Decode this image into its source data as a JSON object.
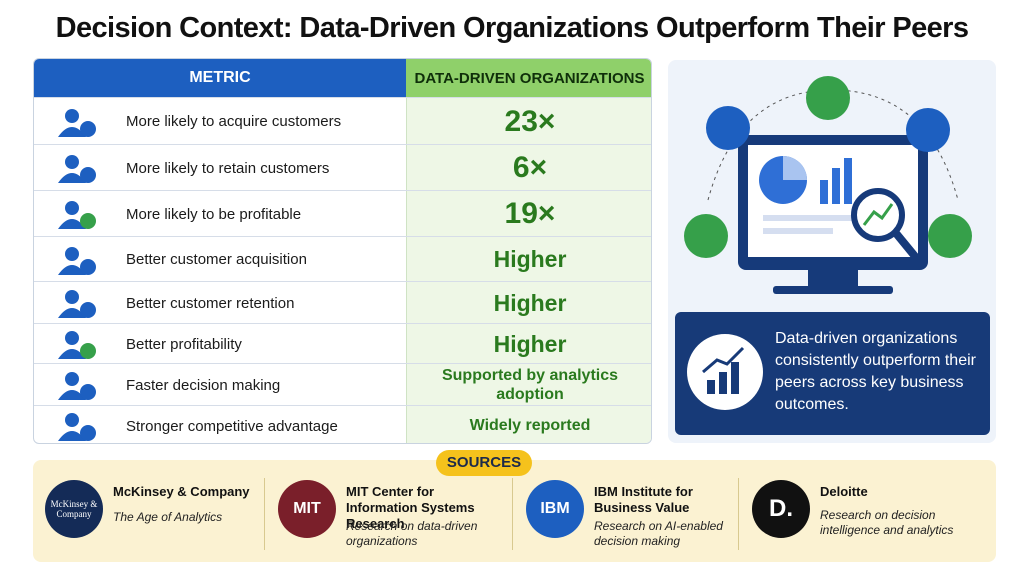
{
  "header": {
    "title": "Decision Context: Data-Driven Organizations Outperform Their Peers"
  },
  "table": {
    "columns": [
      "METRIC",
      "DATA-DRIVEN ORGANIZATIONS"
    ],
    "rows": [
      [
        "More likely to acquire customers",
        "23×"
      ],
      [
        "More likely to retain customers",
        "6×"
      ],
      [
        "More likely to be profitable",
        "19×"
      ],
      [
        "Better customer acquisition",
        "Higher"
      ],
      [
        "Better customer retention",
        "Higher"
      ],
      [
        "Better profitability",
        "Higher"
      ],
      [
        "Faster decision making",
        "Supported by analytics adoption"
      ],
      [
        "Stronger competitive advantage",
        "Widely reported"
      ]
    ]
  },
  "callout": {
    "text": "Data-driven organizations consistently outperform their peers across key business outcomes."
  },
  "sources": {
    "label": "SOURCES",
    "items": [
      {
        "logo": "McKinsey & Company",
        "name": "McKinsey & Company",
        "detail": "The Age of Analytics"
      },
      {
        "logo": "MIT",
        "name": "MIT Center for Information Systems Research",
        "detail": "Research on data-driven organizations"
      },
      {
        "logo": "IBM",
        "name": "IBM Institute for Business Value",
        "detail": "Research on AI-enabled decision making"
      },
      {
        "logo": "D.",
        "name": "Deloitte",
        "detail": "Research on decision intelligence and analytics"
      }
    ]
  }
}
